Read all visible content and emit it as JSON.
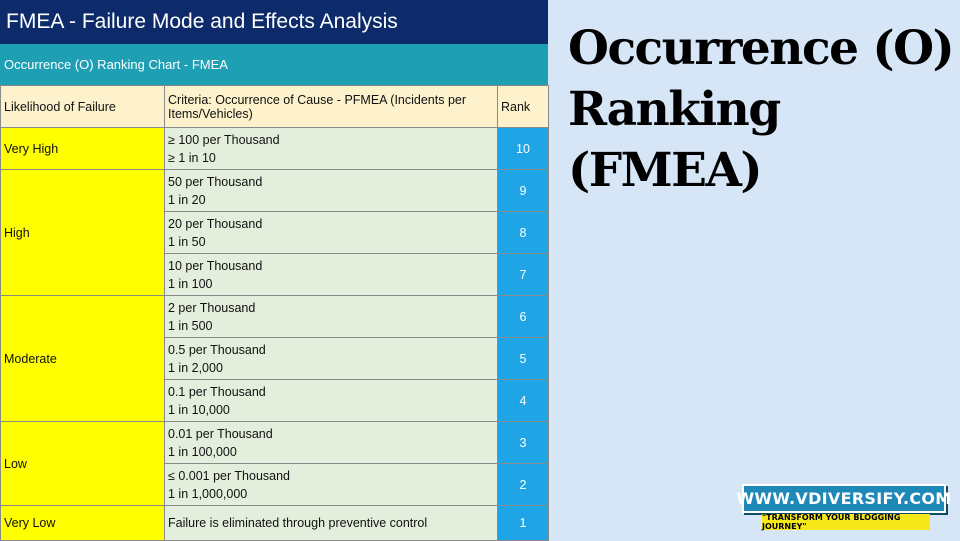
{
  "banner": {
    "title": "FMEA - Failure Mode and Effects Analysis"
  },
  "subheader": {
    "text": "Occurrence (O) Ranking Chart - FMEA"
  },
  "table": {
    "headers": {
      "likelihood": "Likelihood of Failure",
      "criteria": "Criteria: Occurrence of Cause - PFMEA (Incidents per Items/Vehicles)",
      "rank": "Rank"
    },
    "groups": {
      "very_high": "Very High",
      "high": "High",
      "moderate": "Moderate",
      "low": "Low",
      "very_low": "Very Low"
    },
    "rows": [
      {
        "line1": "≥ 100 per Thousand",
        "line2": "≥ 1 in 10",
        "rank": "10"
      },
      {
        "line1": "50 per Thousand",
        "line2": "1 in 20",
        "rank": "9"
      },
      {
        "line1": "20 per Thousand",
        "line2": "1 in 50",
        "rank": "8"
      },
      {
        "line1": "10 per Thousand",
        "line2": "1 in 100",
        "rank": "7"
      },
      {
        "line1": "2 per Thousand",
        "line2": "1 in 500",
        "rank": "6"
      },
      {
        "line1": "0.5 per Thousand",
        "line2": "1 in 2,000",
        "rank": "5"
      },
      {
        "line1": "0.1 per Thousand",
        "line2": "1 in 10,000",
        "rank": "4"
      },
      {
        "line1": "0.01 per Thousand",
        "line2": "1 in 100,000",
        "rank": "3"
      },
      {
        "line1": "≤ 0.001 per Thousand",
        "line2": "1 in 1,000,000",
        "rank": "2"
      },
      {
        "line1": "Failure is eliminated through preventive control",
        "line2": "",
        "rank": "1"
      }
    ]
  },
  "side_title": {
    "line1": "Occurrence (O)",
    "line2": "Ranking",
    "line3": "(FMEA)"
  },
  "brand": {
    "site": "WWW.VDIVERSIFY.COM",
    "slogan": "\"TRANSFORM YOUR BLOGGING JOURNEY\""
  }
}
